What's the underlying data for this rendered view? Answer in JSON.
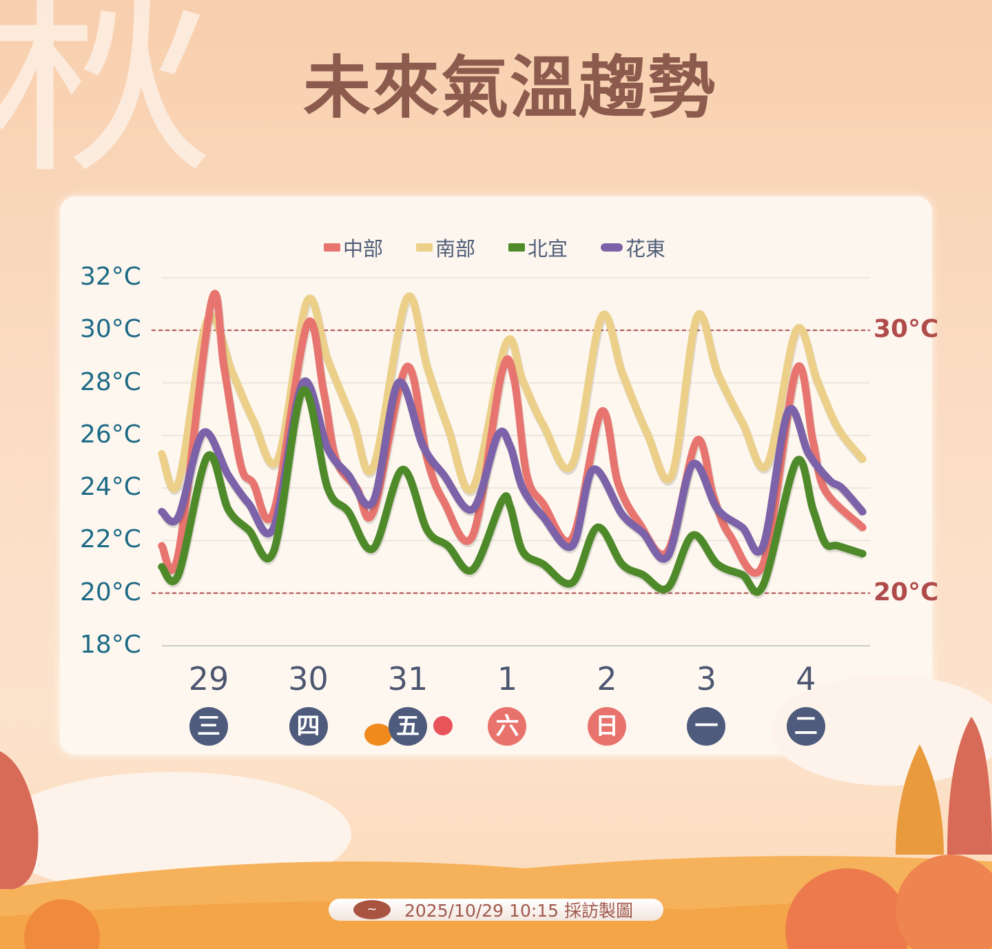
{
  "watermark": "秋",
  "title": "未來氣溫趨勢",
  "footer": {
    "text": "2025/10/29 10:15 採訪製圖",
    "logo_icon": "weather-bureau-logo-icon"
  },
  "colors": {
    "central": "#e8746f",
    "south": "#ecd08a",
    "north_yilan": "#4e8a2a",
    "hualien_taitung": "#7c62a8",
    "reference_line": "#b04b4b",
    "weekday": "#4f5b7c",
    "weekend": "#e8736c"
  },
  "chart_data": {
    "type": "line",
    "title": "未來氣溫趨勢",
    "xlabel": "",
    "ylabel": "",
    "ylim": [
      18,
      32
    ],
    "xlim": [
      "10/29 01:00",
      "11/05 04:00"
    ],
    "y_ticks": [
      "32°C",
      "30°C",
      "28°C",
      "26°C",
      "24°C",
      "22°C",
      "20°C",
      "18°C"
    ],
    "y_tick_values": [
      32,
      30,
      28,
      26,
      24,
      22,
      20,
      18
    ],
    "x_ticks": [
      {
        "date": "29",
        "weekday": "三",
        "at": "10/29 12:00",
        "weekend": false
      },
      {
        "date": "30",
        "weekday": "四",
        "at": "10/30 12:00",
        "weekend": false
      },
      {
        "date": "31",
        "weekday": "五",
        "at": "10/31 12:00",
        "weekend": false
      },
      {
        "date": "1",
        "weekday": "六",
        "at": "11/01 12:00",
        "weekend": true
      },
      {
        "date": "2",
        "weekday": "日",
        "at": "11/02 12:00",
        "weekend": true
      },
      {
        "date": "3",
        "weekday": "一",
        "at": "11/03 12:00",
        "weekend": false
      },
      {
        "date": "4",
        "weekday": "二",
        "at": "11/04 12:00",
        "weekend": false
      }
    ],
    "reference_lines": [
      {
        "value": 30,
        "label": "30°C"
      },
      {
        "value": 20,
        "label": "20°C"
      }
    ],
    "grid": true,
    "legend": "top",
    "series": [
      {
        "name": "中部",
        "color": "#e8746f",
        "points": [
          [
            "10/29 01:00",
            21.8
          ],
          [
            "10/29 05:00",
            21.5
          ],
          [
            "10/29 13:00",
            31.1
          ],
          [
            "10/29 16:00",
            28.6
          ],
          [
            "10/29 20:00",
            24.9
          ],
          [
            "10/29 23:00",
            24.2
          ],
          [
            "10/30 04:00",
            23.1
          ],
          [
            "10/30 12:00",
            30.2
          ],
          [
            "10/30 16:00",
            27.7
          ],
          [
            "10/30 19:00",
            25.1
          ],
          [
            "10/31 00:00",
            24.0
          ],
          [
            "10/31 04:00",
            23.1
          ],
          [
            "10/31 12:00",
            28.6
          ],
          [
            "10/31 17:00",
            25.1
          ],
          [
            "10/31 21:00",
            23.5
          ],
          [
            "11/01 04:00",
            22.2
          ],
          [
            "11/01 11:00",
            28.4
          ],
          [
            "11/01 14:00",
            28.1
          ],
          [
            "11/01 17:00",
            24.5
          ],
          [
            "11/01 21:00",
            23.4
          ],
          [
            "11/02 04:00",
            22.1
          ],
          [
            "11/02 11:00",
            26.9
          ],
          [
            "11/02 15:00",
            24.2
          ],
          [
            "11/02 20:00",
            22.7
          ],
          [
            "11/03 03:00",
            21.6
          ],
          [
            "11/03 10:00",
            25.8
          ],
          [
            "11/03 14:00",
            23.7
          ],
          [
            "11/03 18:00",
            22.2
          ],
          [
            "11/04 02:00",
            21.1
          ],
          [
            "11/04 10:00",
            28.5
          ],
          [
            "11/04 14:00",
            25.8
          ],
          [
            "11/04 17:00",
            23.9
          ],
          [
            "11/05 02:00",
            22.5
          ]
        ]
      },
      {
        "name": "南部",
        "color": "#ecd08a",
        "points": [
          [
            "10/29 01:00",
            25.3
          ],
          [
            "10/29 05:00",
            24.2
          ],
          [
            "10/29 12:00",
            30.4
          ],
          [
            "10/29 18:00",
            28.4
          ],
          [
            "10/29 23:00",
            26.6
          ],
          [
            "10/30 05:00",
            25.1
          ],
          [
            "10/30 12:00",
            31.1
          ],
          [
            "10/30 17:00",
            28.9
          ],
          [
            "10/30 23:00",
            26.6
          ],
          [
            "10/31 04:00",
            24.8
          ],
          [
            "10/31 12:00",
            31.2
          ],
          [
            "10/31 17:00",
            28.6
          ],
          [
            "10/31 22:00",
            26.3
          ],
          [
            "11/01 04:00",
            24.0
          ],
          [
            "11/01 12:00",
            29.5
          ],
          [
            "11/01 16:00",
            28.1
          ],
          [
            "11/01 21:00",
            26.4
          ],
          [
            "11/02 04:00",
            24.9
          ],
          [
            "11/02 11:00",
            30.5
          ],
          [
            "11/02 16:00",
            28.4
          ],
          [
            "11/02 22:00",
            26.1
          ],
          [
            "11/03 04:00",
            24.5
          ],
          [
            "11/03 10:00",
            30.5
          ],
          [
            "11/03 15:00",
            28.4
          ],
          [
            "11/03 21:00",
            26.5
          ],
          [
            "11/04 03:00",
            24.9
          ],
          [
            "11/04 10:00",
            30.0
          ],
          [
            "11/04 15:00",
            28.1
          ],
          [
            "11/04 20:00",
            26.3
          ],
          [
            "11/05 02:00",
            25.1
          ]
        ]
      },
      {
        "name": "北宜",
        "color": "#4e8a2a",
        "points": [
          [
            "10/29 01:00",
            21.0
          ],
          [
            "10/29 05:00",
            20.7
          ],
          [
            "10/29 12:00",
            25.2
          ],
          [
            "10/29 17:00",
            23.2
          ],
          [
            "10/29 22:00",
            22.4
          ],
          [
            "10/30 04:00",
            21.6
          ],
          [
            "10/30 11:00",
            27.7
          ],
          [
            "10/30 17:00",
            24.0
          ],
          [
            "10/30 22:00",
            23.1
          ],
          [
            "10/31 04:00",
            21.7
          ],
          [
            "10/31 11:00",
            24.7
          ],
          [
            "10/31 17:00",
            22.4
          ],
          [
            "10/31 22:00",
            21.8
          ],
          [
            "11/01 04:00",
            20.9
          ],
          [
            "11/01 11:00",
            23.5
          ],
          [
            "11/01 13:00",
            23.3
          ],
          [
            "11/01 16:00",
            21.6
          ],
          [
            "11/01 21:00",
            21.1
          ],
          [
            "11/02 04:00",
            20.4
          ],
          [
            "11/02 10:00",
            22.5
          ],
          [
            "11/02 16:00",
            21.1
          ],
          [
            "11/02 21:00",
            20.7
          ],
          [
            "11/03 03:00",
            20.2
          ],
          [
            "11/03 09:00",
            22.2
          ],
          [
            "11/03 15:00",
            21.1
          ],
          [
            "11/03 21:00",
            20.7
          ],
          [
            "11/04 02:00",
            20.3
          ],
          [
            "11/04 10:00",
            25.0
          ],
          [
            "11/04 14:00",
            23.2
          ],
          [
            "11/04 17:00",
            21.9
          ],
          [
            "11/04 20:00",
            21.8
          ],
          [
            "11/05 02:00",
            21.5
          ]
        ]
      },
      {
        "name": "花東",
        "color": "#7c62a8",
        "points": [
          [
            "10/29 01:00",
            23.1
          ],
          [
            "10/29 05:00",
            22.9
          ],
          [
            "10/29 11:00",
            26.1
          ],
          [
            "10/29 17:00",
            24.5
          ],
          [
            "10/29 22:00",
            23.4
          ],
          [
            "10/30 04:00",
            22.5
          ],
          [
            "10/30 11:00",
            28.0
          ],
          [
            "10/30 17:00",
            25.5
          ],
          [
            "10/30 22:00",
            24.5
          ],
          [
            "10/31 04:00",
            23.5
          ],
          [
            "10/31 10:00",
            28.0
          ],
          [
            "10/31 16:00",
            25.6
          ],
          [
            "10/31 21:00",
            24.5
          ],
          [
            "11/01 04:00",
            23.2
          ],
          [
            "11/01 10:00",
            26.0
          ],
          [
            "11/01 13:00",
            25.6
          ],
          [
            "11/01 16:00",
            24.0
          ],
          [
            "11/01 21:00",
            22.9
          ],
          [
            "11/02 04:00",
            21.8
          ],
          [
            "11/02 09:00",
            24.7
          ],
          [
            "11/02 16:00",
            23.0
          ],
          [
            "11/02 21:00",
            22.3
          ],
          [
            "11/03 03:00",
            21.4
          ],
          [
            "11/03 09:00",
            24.9
          ],
          [
            "11/03 15:00",
            23.2
          ],
          [
            "11/03 21:00",
            22.5
          ],
          [
            "11/04 02:00",
            21.8
          ],
          [
            "11/04 08:00",
            26.9
          ],
          [
            "11/04 13:00",
            25.3
          ],
          [
            "11/04 18:00",
            24.3
          ],
          [
            "11/04 21:00",
            24.0
          ],
          [
            "11/05 02:00",
            23.1
          ]
        ]
      }
    ]
  }
}
